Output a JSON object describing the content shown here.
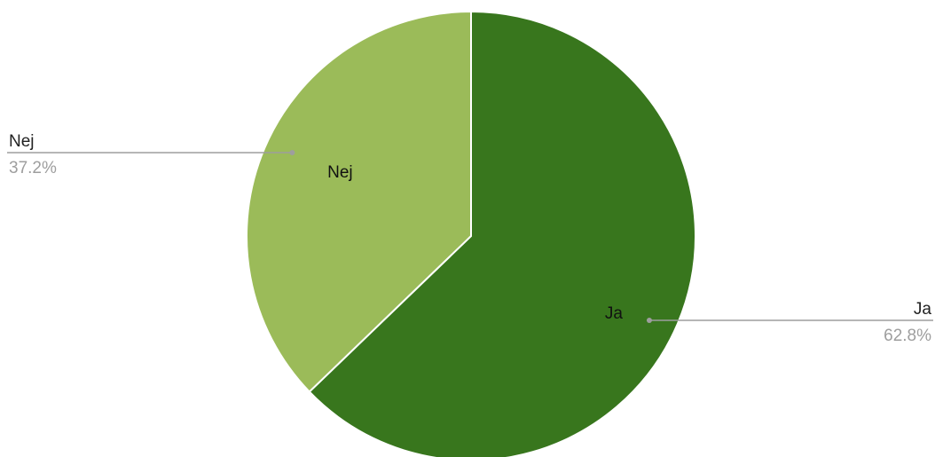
{
  "chart_data": {
    "type": "pie",
    "title": "",
    "slices": [
      {
        "label": "Ja",
        "value": 62.8,
        "percent_label": "62.8%",
        "color": "#38761d"
      },
      {
        "label": "Nej",
        "value": 37.2,
        "percent_label": "37.2%",
        "color": "#9bbb59"
      }
    ],
    "start_angle": "12 o'clock",
    "direction": "clockwise",
    "legend": "none",
    "labels": "inside and outside with leader lines"
  }
}
